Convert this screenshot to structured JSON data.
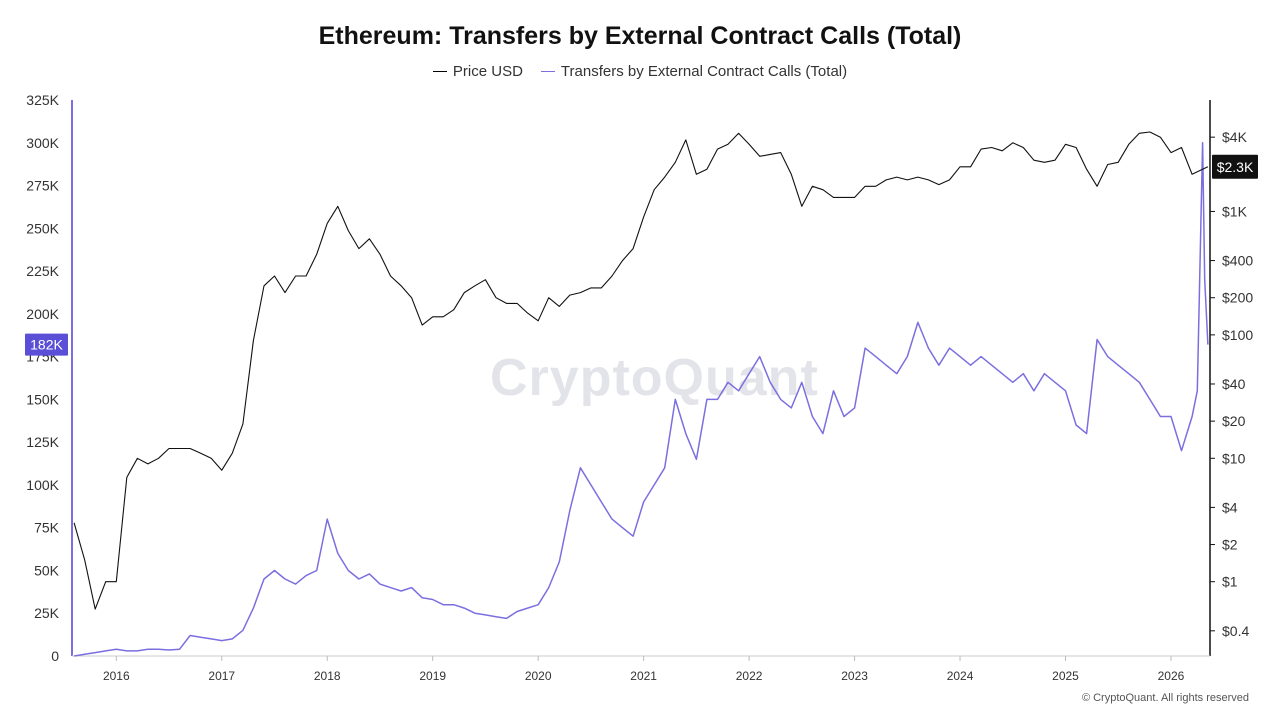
{
  "chart_data": {
    "type": "line",
    "title": "Ethereum: Transfers by External Contract Calls (Total)",
    "legend": {
      "placement": "top-center",
      "entries": [
        "Price USD",
        "Transfers by External Contract Calls (Total)"
      ]
    },
    "grid": false,
    "x_ticks": [
      "2016",
      "2017",
      "2018",
      "2019",
      "2020",
      "2021",
      "2022",
      "2023",
      "2024",
      "2025",
      "2026"
    ],
    "xlim": [
      2015.58,
      2026.37
    ],
    "y_left": {
      "ylim": [
        0,
        325000
      ],
      "ticks": [
        0,
        25000,
        50000,
        75000,
        100000,
        125000,
        150000,
        175000,
        200000,
        225000,
        250000,
        275000,
        300000,
        325000
      ],
      "tick_labels": [
        "0",
        "25K",
        "50K",
        "75K",
        "100K",
        "125K",
        "150K",
        "175K",
        "200K",
        "225K",
        "250K",
        "275K",
        "300K",
        "325K"
      ],
      "current_label": "182K",
      "current_value": 182000
    },
    "y_right": {
      "scale": "log",
      "ylim": [
        0.25,
        8000
      ],
      "ticks": [
        0.4,
        1,
        2,
        4,
        10,
        20,
        40,
        100,
        200,
        400,
        1000,
        4000
      ],
      "tick_labels": [
        "$0.4",
        "$1",
        "$2",
        "$4",
        "$10",
        "$20",
        "$40",
        "$100",
        "$200",
        "$400",
        "$1K",
        "$4K"
      ],
      "current_label": "$2.3K",
      "current_value": 2300
    },
    "series": [
      {
        "name": "Price USD",
        "color": "#111111",
        "axis": "right",
        "x": [
          2015.6,
          2015.7,
          2015.8,
          2015.9,
          2016.0,
          2016.1,
          2016.2,
          2016.3,
          2016.4,
          2016.5,
          2016.6,
          2016.7,
          2016.8,
          2016.9,
          2017.0,
          2017.1,
          2017.2,
          2017.3,
          2017.4,
          2017.5,
          2017.6,
          2017.7,
          2017.8,
          2017.9,
          2018.0,
          2018.1,
          2018.2,
          2018.3,
          2018.4,
          2018.5,
          2018.6,
          2018.7,
          2018.8,
          2018.9,
          2019.0,
          2019.1,
          2019.2,
          2019.3,
          2019.4,
          2019.5,
          2019.6,
          2019.7,
          2019.8,
          2019.9,
          2020.0,
          2020.1,
          2020.2,
          2020.3,
          2020.4,
          2020.5,
          2020.6,
          2020.7,
          2020.8,
          2020.9,
          2021.0,
          2021.1,
          2021.2,
          2021.3,
          2021.4,
          2021.5,
          2021.6,
          2021.7,
          2021.8,
          2021.9,
          2022.0,
          2022.1,
          2022.2,
          2022.3,
          2022.4,
          2022.5,
          2022.6,
          2022.7,
          2022.8,
          2022.9,
          2023.0,
          2023.1,
          2023.2,
          2023.3,
          2023.4,
          2023.5,
          2023.6,
          2023.7,
          2023.8,
          2023.9,
          2024.0,
          2024.1,
          2024.2,
          2024.3,
          2024.4,
          2024.5,
          2024.6,
          2024.7,
          2024.8,
          2024.9,
          2025.0,
          2025.1,
          2025.2,
          2025.3,
          2025.4,
          2025.5,
          2025.6,
          2025.7,
          2025.8,
          2025.9,
          2026.0,
          2026.1,
          2026.2,
          2026.3,
          2026.35
        ],
        "values": [
          3,
          1.5,
          0.6,
          1,
          1,
          7,
          10,
          9,
          10,
          12,
          12,
          12,
          11,
          10,
          8,
          11,
          19,
          90,
          250,
          300,
          220,
          300,
          300,
          450,
          800,
          1100,
          700,
          500,
          600,
          450,
          300,
          250,
          200,
          120,
          140,
          140,
          160,
          220,
          250,
          280,
          200,
          180,
          180,
          150,
          130,
          200,
          170,
          210,
          220,
          240,
          240,
          300,
          400,
          500,
          900,
          1500,
          1900,
          2500,
          3800,
          2000,
          2200,
          3200,
          3500,
          4300,
          3500,
          2800,
          2900,
          3000,
          2000,
          1100,
          1600,
          1500,
          1300,
          1300,
          1300,
          1600,
          1600,
          1800,
          1900,
          1800,
          1900,
          1800,
          1650,
          1800,
          2300,
          2300,
          3200,
          3300,
          3100,
          3600,
          3300,
          2600,
          2500,
          2600,
          3500,
          3300,
          2200,
          1600,
          2400,
          2500,
          3500,
          4300,
          4400,
          4000,
          3000,
          3300,
          2000,
          2200,
          2300
        ]
      },
      {
        "name": "Transfers by External Contract Calls (Total)",
        "color": "#7b6fe0",
        "axis": "left",
        "x": [
          2015.6,
          2015.7,
          2015.8,
          2015.9,
          2016.0,
          2016.1,
          2016.2,
          2016.3,
          2016.4,
          2016.5,
          2016.6,
          2016.7,
          2016.8,
          2016.9,
          2017.0,
          2017.1,
          2017.2,
          2017.3,
          2017.4,
          2017.5,
          2017.6,
          2017.7,
          2017.8,
          2017.9,
          2018.0,
          2018.1,
          2018.2,
          2018.3,
          2018.4,
          2018.5,
          2018.6,
          2018.7,
          2018.8,
          2018.9,
          2019.0,
          2019.1,
          2019.2,
          2019.3,
          2019.4,
          2019.5,
          2019.6,
          2019.7,
          2019.8,
          2019.9,
          2020.0,
          2020.1,
          2020.2,
          2020.3,
          2020.4,
          2020.5,
          2020.6,
          2020.7,
          2020.8,
          2020.9,
          2021.0,
          2021.1,
          2021.2,
          2021.3,
          2021.4,
          2021.5,
          2021.6,
          2021.7,
          2021.8,
          2021.9,
          2022.0,
          2022.1,
          2022.2,
          2022.3,
          2022.4,
          2022.5,
          2022.6,
          2022.7,
          2022.8,
          2022.9,
          2023.0,
          2023.1,
          2023.2,
          2023.3,
          2023.4,
          2023.5,
          2023.6,
          2023.7,
          2023.8,
          2023.9,
          2024.0,
          2024.1,
          2024.2,
          2024.3,
          2024.4,
          2024.5,
          2024.6,
          2024.7,
          2024.8,
          2024.9,
          2025.0,
          2025.1,
          2025.2,
          2025.3,
          2025.4,
          2025.5,
          2025.6,
          2025.7,
          2025.8,
          2025.9,
          2026.0,
          2026.1,
          2026.2,
          2026.25,
          2026.3,
          2026.32,
          2026.35
        ],
        "values": [
          0,
          1000,
          2000,
          3000,
          4000,
          3000,
          3000,
          4000,
          4000,
          3500,
          4000,
          12000,
          11000,
          10000,
          9000,
          10000,
          15000,
          28000,
          45000,
          50000,
          45000,
          42000,
          47000,
          50000,
          80000,
          60000,
          50000,
          45000,
          48000,
          42000,
          40000,
          38000,
          40000,
          34000,
          33000,
          30000,
          30000,
          28000,
          25000,
          24000,
          23000,
          22000,
          26000,
          28000,
          30000,
          40000,
          55000,
          85000,
          110000,
          100000,
          90000,
          80000,
          75000,
          70000,
          90000,
          100000,
          110000,
          150000,
          130000,
          115000,
          150000,
          150000,
          160000,
          155000,
          165000,
          175000,
          160000,
          150000,
          145000,
          160000,
          140000,
          130000,
          155000,
          140000,
          145000,
          180000,
          175000,
          170000,
          165000,
          175000,
          195000,
          180000,
          170000,
          180000,
          175000,
          170000,
          175000,
          170000,
          165000,
          160000,
          165000,
          155000,
          165000,
          160000,
          155000,
          135000,
          130000,
          185000,
          175000,
          170000,
          165000,
          160000,
          150000,
          140000,
          140000,
          120000,
          140000,
          155000,
          300000,
          220000,
          182000
        ]
      }
    ]
  },
  "watermark": "CryptoQuant",
  "copyright": "© CryptoQuant. All rights reserved"
}
